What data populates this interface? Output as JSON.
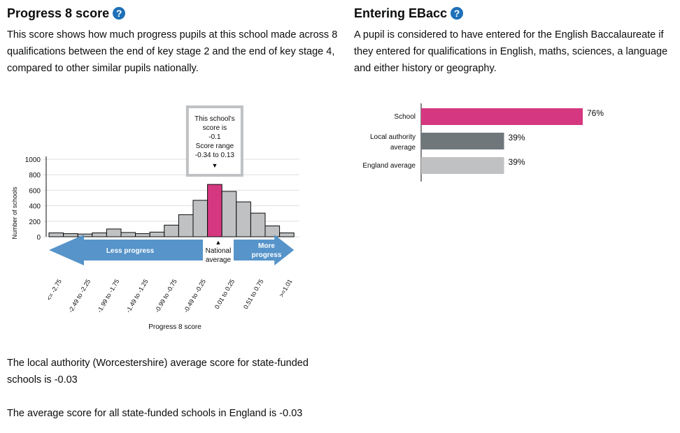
{
  "progress8": {
    "title": "Progress 8 score",
    "help_glyph": "?",
    "description": "This score shows how much progress pupils at this school made across 8 qualifications between the end of key stage 2 and the end of key stage 4, compared to other similar pupils nationally.",
    "la_text": "The local authority (Worcestershire) average score for state-funded schools is -0.03",
    "england_text": "The average score for all state-funded schools in England is -0.03"
  },
  "ebacc": {
    "title": "Entering EBacc",
    "help_glyph": "?",
    "description": "A pupil is considered to have entered for the English Baccalaureate if they entered for qualifications in English, maths, sciences, a language and either history or geography."
  },
  "chart_data": [
    {
      "type": "bar",
      "ylabel": "Number of schools",
      "xlabel": "Progress 8 score",
      "ylim": [
        0,
        1000
      ],
      "yticks": [
        0,
        200,
        400,
        600,
        800,
        1000
      ],
      "grid": true,
      "tick_labels": [
        "<= -2.75",
        "-2.49 to -2.25",
        "-1.99 to -1.75",
        "-1.49 to -1.25",
        "-0.99 to -0.75",
        "-0.49 to -0.25",
        "0.01 to 0.25",
        "0.51 to 0.75",
        ">=1.01"
      ],
      "values": [
        50,
        40,
        35,
        50,
        100,
        55,
        40,
        60,
        150,
        285,
        470,
        675,
        585,
        450,
        305,
        140,
        50
      ],
      "highlight_index": 11,
      "highlight_color": "#d53880",
      "bar_color": "#bfc1c3",
      "school_box_lines": [
        "This school's",
        "score is",
        "-0.1",
        "Score range",
        "-0.34 to 0.13"
      ],
      "marker_glyph": "▼",
      "average_marker_glyph": "▲",
      "average_lines": [
        "National",
        "average"
      ],
      "less_label": "Less progress",
      "more_lines": [
        "More",
        "progress"
      ],
      "arrow_color": "#5694ca"
    },
    {
      "type": "bar",
      "orientation": "horizontal",
      "xlim": [
        0,
        100
      ],
      "categories": [
        {
          "lines": [
            "School"
          ],
          "value": 76,
          "label": "76%",
          "color": "#d53880"
        },
        {
          "lines": [
            "Local authority",
            "average"
          ],
          "value": 39,
          "label": "39%",
          "color": "#6f777b"
        },
        {
          "lines": [
            "England average"
          ],
          "value": 39,
          "label": "39%",
          "color": "#bfc1c3"
        }
      ]
    }
  ]
}
